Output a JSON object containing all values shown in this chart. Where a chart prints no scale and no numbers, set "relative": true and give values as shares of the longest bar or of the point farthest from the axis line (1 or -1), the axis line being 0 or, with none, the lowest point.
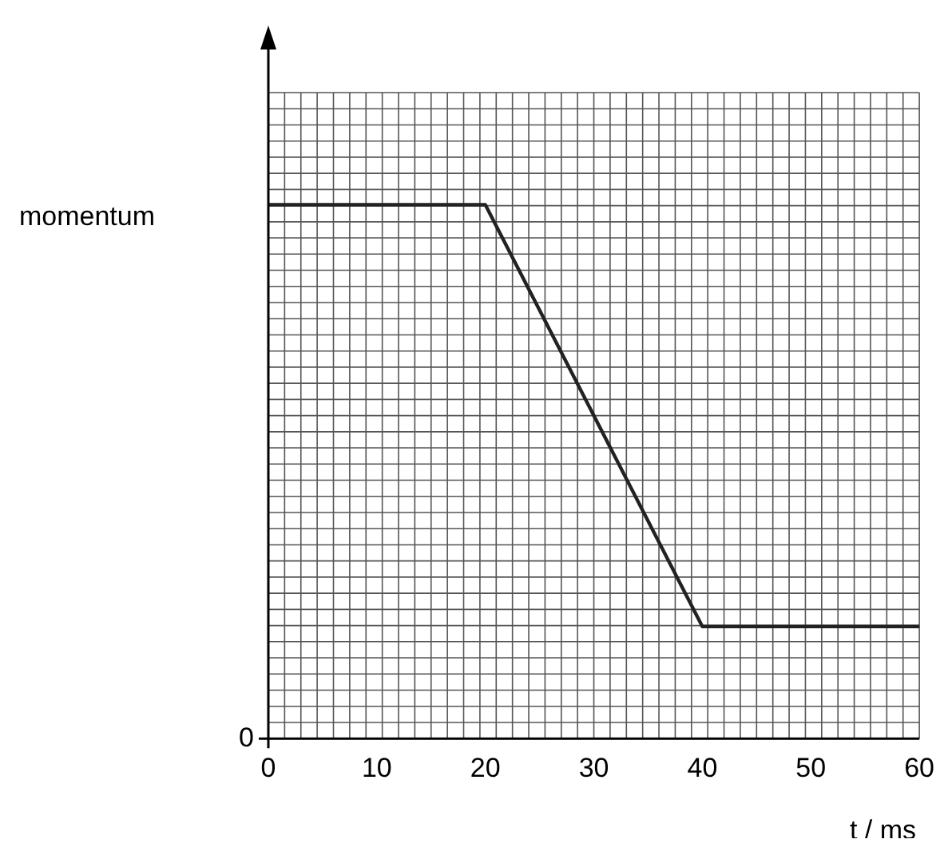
{
  "chart_data": {
    "type": "line",
    "relative": true,
    "xlabel": "t / ms",
    "ylabel": "momentum",
    "annotations": [
      "0"
    ],
    "x": [
      0,
      20,
      40,
      60
    ],
    "values": [
      1,
      1,
      0.21,
      0.21
    ],
    "color": "#222222",
    "xlim": [
      0,
      60
    ],
    "xticks": [
      0,
      10,
      20,
      30,
      40,
      50,
      60
    ],
    "grid": true,
    "legend": false,
    "marker": "none",
    "line_style": "solid"
  }
}
